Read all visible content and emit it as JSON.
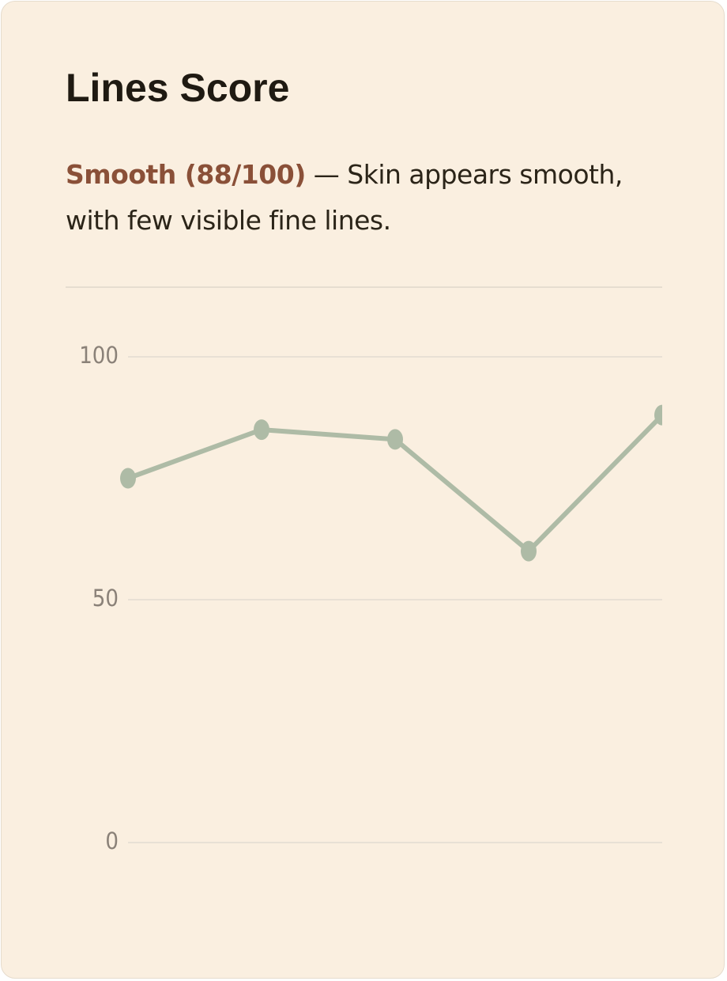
{
  "header": {
    "title": "Lines Score"
  },
  "description": {
    "label": "Smooth (88/100)",
    "text": "— Skin appears smooth, with few visible fine lines."
  },
  "chart_data": {
    "type": "line",
    "values": [
      75,
      85,
      83,
      60,
      88
    ],
    "color": "#aebba6",
    "ylim": [
      0,
      100
    ],
    "yticks": [
      0,
      50,
      100
    ],
    "grid": true
  }
}
